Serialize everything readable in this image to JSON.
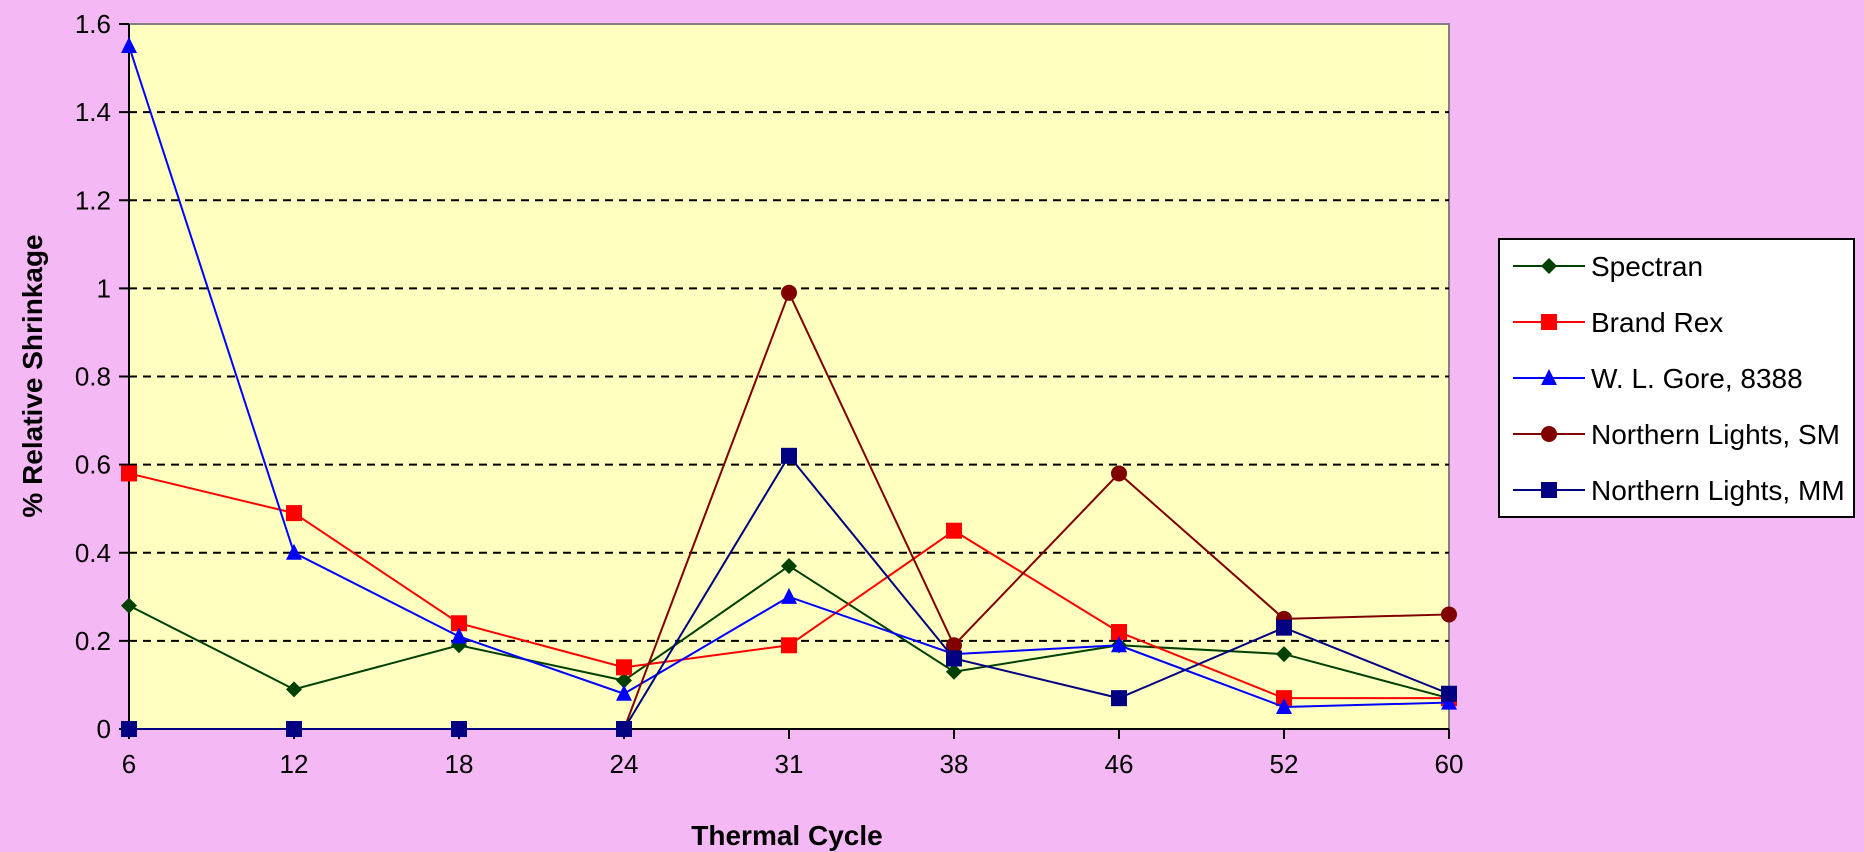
{
  "chart_data": {
    "type": "line",
    "title": "",
    "xlabel": "Thermal Cycle",
    "ylabel": "% Relative Shrinkage",
    "categories": [
      "6",
      "12",
      "18",
      "24",
      "31",
      "38",
      "46",
      "52",
      "60"
    ],
    "ylim": [
      0,
      1.6
    ],
    "yticks": [
      "0",
      "0.2",
      "0.4",
      "0.6",
      "0.8",
      "1",
      "1.2",
      "1.4",
      "1.6"
    ],
    "grid": "horizontal dashed",
    "legend_position": "right",
    "plot_background": "#ffffc0",
    "page_background": "#f4b8f4",
    "series": [
      {
        "name": "Spectran",
        "color": "#004000",
        "marker": "diamond",
        "values": [
          0.28,
          0.09,
          0.19,
          0.11,
          0.37,
          0.13,
          0.19,
          0.17,
          0.07
        ]
      },
      {
        "name": "Brand Rex",
        "color": "#ff0000",
        "marker": "square",
        "values": [
          0.58,
          0.49,
          0.24,
          0.14,
          0.19,
          0.45,
          0.22,
          0.07,
          0.07
        ]
      },
      {
        "name": "W. L. Gore, 8388",
        "color": "#0000ff",
        "marker": "triangle",
        "values": [
          1.55,
          0.4,
          0.21,
          0.08,
          0.3,
          0.17,
          0.19,
          0.05,
          0.06
        ]
      },
      {
        "name": "Northern Lights, SM",
        "color": "#800000",
        "marker": "circle",
        "values": [
          0,
          0,
          0,
          0,
          0.99,
          0.19,
          0.58,
          0.25,
          0.26
        ]
      },
      {
        "name": "Northern Lights, MM",
        "color": "#000080",
        "marker": "square",
        "values": [
          0,
          0,
          0,
          0,
          0.62,
          0.16,
          0.07,
          0.23,
          0.08
        ]
      }
    ]
  }
}
